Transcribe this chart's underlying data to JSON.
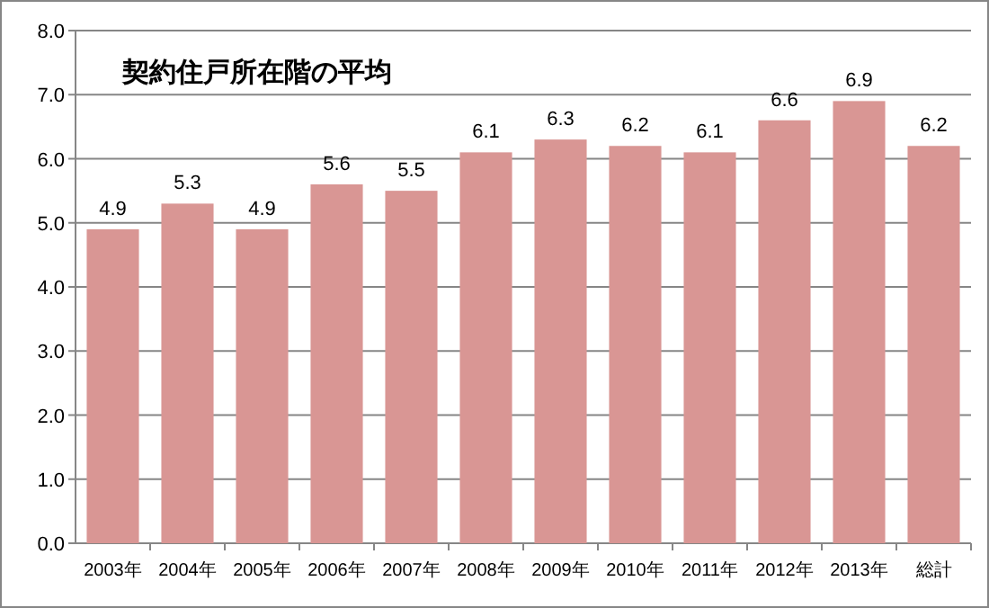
{
  "chart_data": {
    "type": "bar",
    "title": "契約住戸所在階の平均",
    "categories": [
      "2003年",
      "2004年",
      "2005年",
      "2006年",
      "2007年",
      "2008年",
      "2009年",
      "2010年",
      "2011年",
      "2012年",
      "2013年",
      "総計"
    ],
    "values": [
      4.9,
      5.3,
      4.9,
      5.6,
      5.5,
      6.1,
      6.3,
      6.2,
      6.1,
      6.6,
      6.9,
      6.2
    ],
    "color": "#d99694",
    "ylim": [
      0,
      8
    ],
    "yticks": [
      {
        "value": 0,
        "label": "0.0"
      },
      {
        "value": 1,
        "label": "1.0"
      },
      {
        "value": 2,
        "label": "2.0"
      },
      {
        "value": 3,
        "label": "3.0"
      },
      {
        "value": 4,
        "label": "4.0"
      },
      {
        "value": 5,
        "label": "5.0"
      },
      {
        "value": 6,
        "label": "6.0"
      },
      {
        "value": 7,
        "label": "7.0"
      },
      {
        "value": 8,
        "label": "8.0"
      }
    ],
    "grid": "y",
    "data_labels": true
  }
}
